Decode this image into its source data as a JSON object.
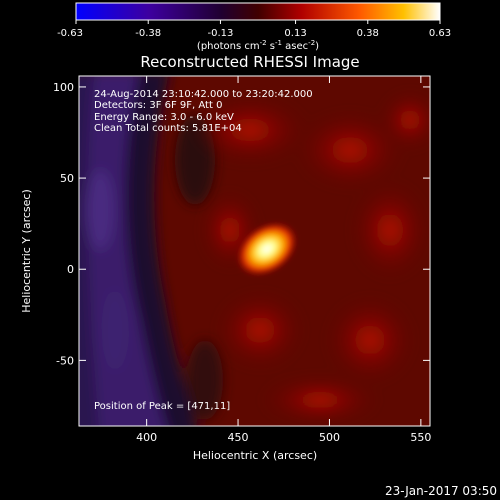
{
  "colorbar": {
    "tick_labels": [
      "-0.63",
      "-0.38",
      "-0.13",
      "0.13",
      "0.38",
      "0.63"
    ],
    "tick_values": [
      -0.63,
      -0.38,
      -0.13,
      0.13,
      0.38,
      0.63
    ],
    "unit": {
      "main": "(photons cm",
      "sup1": "-2",
      "mid": " s",
      "sup2": "-1",
      "mid2": " asec",
      "sup3": "-2",
      "end": ")"
    },
    "stops": [
      "#0000ff",
      "#4b0082",
      "#000000",
      "#8b0000",
      "#ff4500",
      "#ffd700",
      "#ffffff"
    ]
  },
  "image": {
    "title": "Reconstructed RHESSI Image",
    "info_lines": [
      "24-Aug-2014 23:10:42.000 to 23:20:42.000",
      "Detectors: 3F 6F 9F, Att 0",
      "Energy Range: 3.0 - 6.0 keV",
      "Clean    Total counts: 5.81E+04"
    ],
    "peak_label": "Position of Peak = [471,11]",
    "xlabel": "Heliocentric X (arcsec)",
    "ylabel": "Heliocentric Y (arcsec)",
    "x_ticks": [
      "400",
      "450",
      "500",
      "550"
    ],
    "x_tick_values": [
      400,
      450,
      500,
      550
    ],
    "y_ticks": [
      "100",
      "50",
      "0",
      "-50"
    ],
    "y_tick_values": [
      100,
      50,
      0,
      -50
    ]
  },
  "footer": {
    "timestamp": "23-Jan-2017 03:50"
  },
  "chart_data": {
    "type": "heatmap",
    "title": "Reconstructed RHESSI Image",
    "xlabel": "Heliocentric X (arcsec)",
    "ylabel": "Heliocentric Y (arcsec)",
    "xlim": [
      363,
      555
    ],
    "ylim": [
      -86,
      106
    ],
    "zlim": [
      -0.63,
      0.63
    ],
    "peak": {
      "x": 471,
      "y": 11
    }
  }
}
